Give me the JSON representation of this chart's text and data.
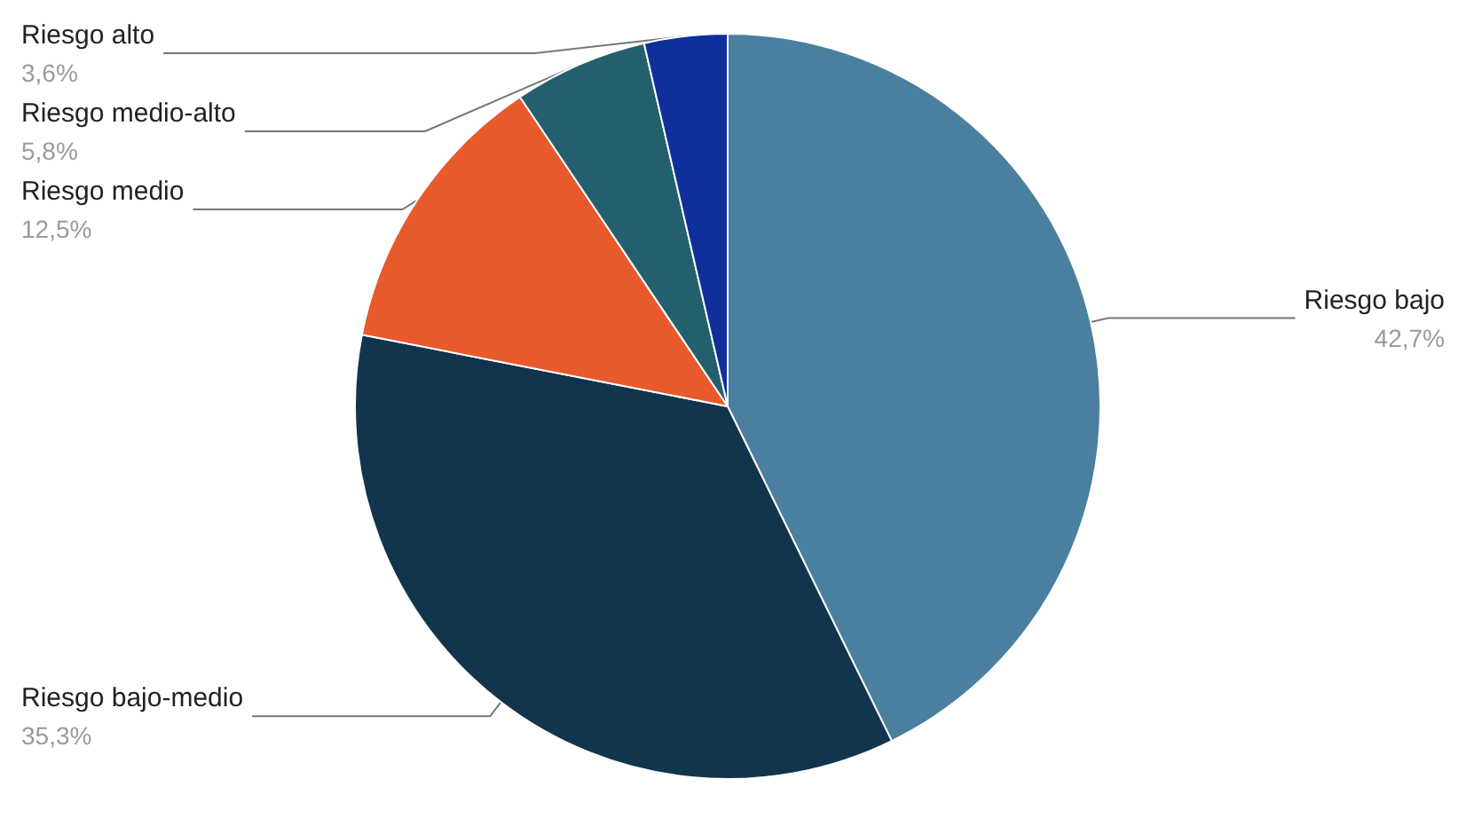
{
  "chart_data": {
    "type": "pie",
    "categories": [
      "Riesgo bajo",
      "Riesgo bajo-medio",
      "Riesgo medio",
      "Riesgo medio-alto",
      "Riesgo alto"
    ],
    "values": [
      42.7,
      35.3,
      12.5,
      5.8,
      3.6
    ],
    "colors": [
      "#4a7f9f",
      "#12344d",
      "#e8592b",
      "#245f6e",
      "#0f2f9a"
    ],
    "value_labels": [
      "42,7%",
      "35,3%",
      "12,5%",
      "5,8%",
      "3,6%"
    ],
    "legend": false
  }
}
